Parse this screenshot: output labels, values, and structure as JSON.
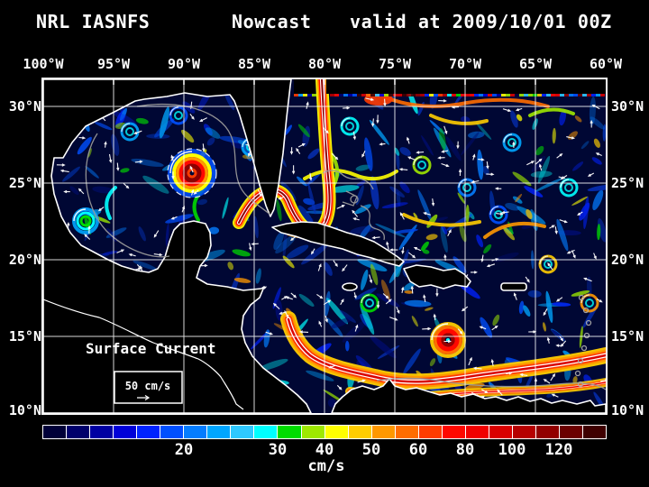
{
  "title": {
    "model": "NRL IASNFS",
    "product": "Nowcast",
    "valid": "valid at 2009/10/01 00Z"
  },
  "axes": {
    "lon_labels": [
      "100°W",
      "95°W",
      "90°W",
      "85°W",
      "80°W",
      "75°W",
      "70°W",
      "65°W",
      "60°W"
    ],
    "lat_labels": [
      "30°N",
      "25°N",
      "20°N",
      "15°N",
      "10°N"
    ]
  },
  "legend": {
    "title": "Surface Current",
    "scale_value": "50 cm/s"
  },
  "colorbar": {
    "unit": "cm/s",
    "tick_labels": [
      "20",
      "30",
      "40",
      "50",
      "60",
      "80",
      "100",
      "120"
    ],
    "tick_cell_boundaries": [
      6,
      10,
      12,
      14,
      16,
      18,
      20,
      22
    ],
    "cell_colors": [
      "#000038",
      "#00006b",
      "#0000a2",
      "#0000d8",
      "#0023ff",
      "#0050ff",
      "#047dff",
      "#00a6ff",
      "#2fc9ff",
      "#00ffff",
      "#00dc00",
      "#9ee800",
      "#ffff00",
      "#ffcd00",
      "#ff9800",
      "#ff6d00",
      "#ff3c00",
      "#ff0800",
      "#f10000",
      "#d90000",
      "#b60000",
      "#920000",
      "#6b0000",
      "#3f0000"
    ]
  },
  "palette_roles": {
    "page_background": "#000000",
    "ocean_background": "#000734",
    "land": "#000000",
    "coastline": "#ffffff",
    "bathymetry_contour": "#999999",
    "grid_lines": "#ffffff",
    "frame": "#ffffff",
    "text": "#ffffff"
  }
}
